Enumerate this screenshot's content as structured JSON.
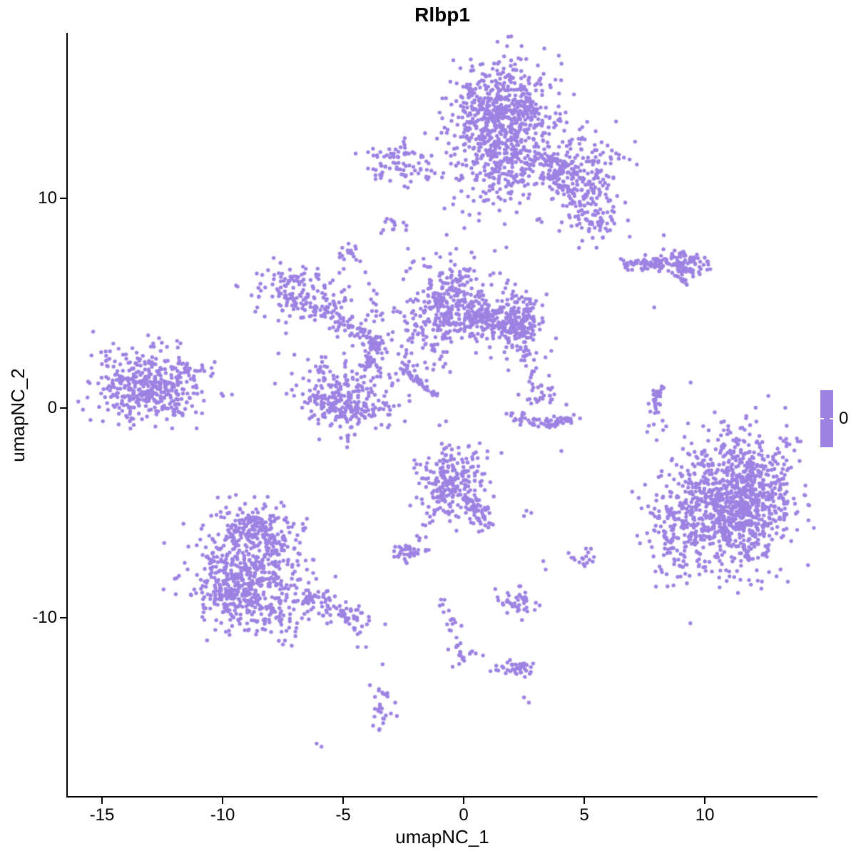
{
  "title": "Rlbp1",
  "legend": {
    "label": "0"
  },
  "colors": {
    "point": "#9D82E2",
    "legend_bar": "#9D82E2",
    "axis": "#000000",
    "background": "#FFFFFF"
  },
  "chart_data": {
    "type": "scatter",
    "title": "Rlbp1",
    "xlabel": "umapNC_1",
    "ylabel": "umapNC_2",
    "x_ticks": [
      -15,
      -10,
      -5,
      0,
      5,
      10
    ],
    "y_ticks": [
      -10,
      0,
      10
    ],
    "xlim": [
      -16.42,
      14.64
    ],
    "ylim": [
      -18.54,
      17.86
    ],
    "grid": false,
    "legend": {
      "values": [
        "0"
      ],
      "position": "right"
    },
    "point_color": "#9D82E2",
    "point_radius_px": 2.7,
    "clusters": [
      {
        "name": "top-main-core",
        "type": "blob",
        "cx": 1.6,
        "cy": 14.0,
        "sx": 1.05,
        "sy": 1.25,
        "n": 620
      },
      {
        "name": "top-main-skirt",
        "type": "blob",
        "cx": 1.5,
        "cy": 12.1,
        "sx": 0.95,
        "sy": 0.85,
        "n": 130
      },
      {
        "name": "top-main-bridge",
        "type": "blob",
        "cx": 1.2,
        "cy": 10.7,
        "sx": 0.5,
        "sy": 0.6,
        "n": 30
      },
      {
        "name": "top-right-arm",
        "type": "blob",
        "cx": 4.7,
        "cy": 11.3,
        "sx": 0.85,
        "sy": 1.0,
        "n": 210
      },
      {
        "name": "top-right-arm-end",
        "type": "blob",
        "cx": 5.5,
        "cy": 9.3,
        "sx": 0.55,
        "sy": 0.7,
        "n": 90
      },
      {
        "name": "top-arm-connector",
        "type": "line",
        "x1": 3.4,
        "y1": 12.2,
        "x2": 4.4,
        "y2": 10.4,
        "jitter": 0.3,
        "n": 60
      },
      {
        "name": "top-sparse-ring",
        "type": "blob",
        "cx": 1.8,
        "cy": 10.2,
        "sx": 1.3,
        "sy": 1.1,
        "n": 45
      },
      {
        "name": "upper-left-small",
        "type": "blob",
        "cx": -2.5,
        "cy": 11.6,
        "sx": 0.68,
        "sy": 0.55,
        "n": 85
      },
      {
        "name": "upper-left-outliers",
        "type": "points",
        "pts": [
          [
            -1.2,
            11.2
          ],
          [
            -0.9,
            11.0
          ],
          [
            -1.5,
            10.9
          ]
        ]
      },
      {
        "name": "tiny-blob-a",
        "type": "blob",
        "cx": -2.9,
        "cy": 8.7,
        "sx": 0.25,
        "sy": 0.24,
        "n": 14
      },
      {
        "name": "tiny-blob-b",
        "type": "blob",
        "cx": -4.7,
        "cy": 7.4,
        "sx": 0.3,
        "sy": 0.27,
        "n": 16
      },
      {
        "name": "strand-up",
        "type": "line",
        "x1": -3.9,
        "y1": 6.2,
        "x2": -3.5,
        "y2": 4.3,
        "jitter": 0.14,
        "n": 14
      },
      {
        "name": "left-mid-cluster",
        "type": "blob",
        "cx": -6.7,
        "cy": 5.5,
        "sx": 0.95,
        "sy": 0.7,
        "n": 150
      },
      {
        "name": "left-mid-arm",
        "type": "blob",
        "cx": -5.6,
        "cy": 4.6,
        "sx": 0.38,
        "sy": 0.35,
        "n": 35
      },
      {
        "name": "strand-diag",
        "type": "line",
        "x1": -5.4,
        "y1": 4.2,
        "x2": -3.4,
        "y2": 3.1,
        "jitter": 0.22,
        "n": 65
      },
      {
        "name": "mid-left-blob",
        "type": "blob",
        "cx": -5.0,
        "cy": 0.6,
        "sx": 1.05,
        "sy": 1.0,
        "n": 230
      },
      {
        "name": "mid-left-blob-dense",
        "type": "blob",
        "cx": -4.9,
        "cy": -0.1,
        "sx": 0.75,
        "sy": 0.5,
        "n": 90
      },
      {
        "name": "strand-b",
        "type": "line",
        "x1": -4.2,
        "y1": 1.6,
        "x2": -3.6,
        "y2": 3.3,
        "jitter": 0.16,
        "n": 40
      },
      {
        "name": "center-top-cluster",
        "type": "blob",
        "cx": -0.6,
        "cy": 5.0,
        "sx": 0.8,
        "sy": 1.15,
        "n": 270
      },
      {
        "name": "center-top-left-sparse",
        "type": "blob",
        "cx": -1.6,
        "cy": 4.3,
        "sx": 0.5,
        "sy": 0.7,
        "n": 45
      },
      {
        "name": "center-arm-band",
        "type": "line",
        "x1": 0.1,
        "y1": 4.35,
        "x2": 2.5,
        "y2": 4.0,
        "jitter": 0.42,
        "n": 210
      },
      {
        "name": "center-arm-end",
        "type": "blob",
        "cx": 2.3,
        "cy": 4.1,
        "sx": 0.6,
        "sy": 0.8,
        "n": 140
      },
      {
        "name": "thin-streak",
        "type": "line",
        "x1": -2.6,
        "y1": 1.9,
        "x2": -1.1,
        "y2": 0.55,
        "jitter": 0.06,
        "n": 40
      },
      {
        "name": "center-sparse",
        "type": "blob",
        "cx": -1.9,
        "cy": 2.6,
        "sx": 0.75,
        "sy": 0.7,
        "n": 40
      },
      {
        "name": "far-left-cluster",
        "type": "blob",
        "cx": -13.2,
        "cy": 1.1,
        "sx": 1.05,
        "sy": 0.85,
        "n": 330
      },
      {
        "name": "far-left-arm",
        "type": "line",
        "x1": -12.0,
        "y1": 1.9,
        "x2": -10.5,
        "y2": 1.8,
        "jitter": 0.2,
        "n": 28
      },
      {
        "name": "far-left-skirt",
        "type": "blob",
        "cx": -12.4,
        "cy": 0.4,
        "sx": 0.9,
        "sy": 0.6,
        "n": 70
      },
      {
        "name": "smile-arc",
        "type": "arc",
        "x1": 2.0,
        "y1": -0.3,
        "x2": 4.5,
        "y2": -0.45,
        "ox": 0,
        "oy": -0.75,
        "jitter": 0.14,
        "n": 60
      },
      {
        "name": "smile-top-blob",
        "type": "blob",
        "cx": 3.2,
        "cy": 0.8,
        "sx": 0.28,
        "sy": 0.3,
        "n": 18
      },
      {
        "name": "smile-scatter",
        "type": "blob",
        "cx": 3.1,
        "cy": 0.25,
        "sx": 0.8,
        "sy": 0.3,
        "n": 10
      },
      {
        "name": "smile-strand",
        "type": "line",
        "x1": 2.45,
        "y1": 3.2,
        "x2": 2.9,
        "y2": 0.9,
        "jitter": 0.18,
        "n": 16
      },
      {
        "name": "right-crescent",
        "type": "arc",
        "x1": 8.2,
        "y1": 1.1,
        "x2": 7.9,
        "y2": -0.3,
        "ox": -0.25,
        "oy": 0,
        "jitter": 0.1,
        "n": 32
      },
      {
        "name": "right-crescent-dots",
        "type": "blob",
        "cx": 8.0,
        "cy": -0.75,
        "sx": 0.25,
        "sy": 0.25,
        "n": 6
      },
      {
        "name": "right-band",
        "type": "line",
        "x1": 6.6,
        "y1": 6.8,
        "x2": 8.5,
        "y2": 6.9,
        "jitter": 0.16,
        "n": 65
      },
      {
        "name": "right-band-blob",
        "type": "blob",
        "cx": 9.1,
        "cy": 7.0,
        "sx": 0.45,
        "sy": 0.38,
        "n": 85
      },
      {
        "name": "right-band-mini",
        "type": "line",
        "x1": 8.7,
        "y1": 6.4,
        "x2": 9.2,
        "y2": 5.9,
        "jitter": 0.07,
        "n": 10
      },
      {
        "name": "right-band-single",
        "type": "points",
        "pts": [
          [
            7.9,
            4.8
          ]
        ]
      },
      {
        "name": "right-big-core",
        "type": "blob",
        "cx": 11.3,
        "cy": -4.4,
        "sx": 1.25,
        "sy": 1.6,
        "n": 980
      },
      {
        "name": "right-big-skirt",
        "type": "blob",
        "cx": 9.0,
        "cy": -5.5,
        "sx": 0.85,
        "sy": 1.35,
        "n": 180
      },
      {
        "name": "center-bottom-cluster",
        "type": "blob",
        "cx": -0.45,
        "cy": -3.5,
        "sx": 0.72,
        "sy": 0.9,
        "n": 240
      },
      {
        "name": "center-bottom-arm",
        "type": "line",
        "x1": 0.15,
        "y1": -4.35,
        "x2": 1.1,
        "y2": -5.65,
        "jitter": 0.2,
        "n": 55
      },
      {
        "name": "center-bottom-trail",
        "type": "line",
        "x1": -1.1,
        "y1": -4.8,
        "x2": -2.1,
        "y2": -6.5,
        "jitter": 0.12,
        "n": 12
      },
      {
        "name": "small-left-blob",
        "type": "blob",
        "cx": -2.4,
        "cy": -6.8,
        "sx": 0.38,
        "sy": 0.3,
        "n": 38
      },
      {
        "name": "pair-a",
        "type": "points",
        "pts": [
          [
            2.6,
            -4.9
          ],
          [
            2.8,
            -5.0
          ],
          [
            2.5,
            -5.15
          ]
        ]
      },
      {
        "name": "small-right-blob",
        "type": "blob",
        "cx": 4.9,
        "cy": -7.2,
        "sx": 0.3,
        "sy": 0.27,
        "n": 17
      },
      {
        "name": "pair-b",
        "type": "points",
        "pts": [
          [
            3.3,
            -7.3
          ],
          [
            3.4,
            -7.7
          ]
        ]
      },
      {
        "name": "small-bottom-blob",
        "type": "blob",
        "cx": 2.3,
        "cy": -9.3,
        "sx": 0.42,
        "sy": 0.3,
        "n": 38
      },
      {
        "name": "pair-c",
        "type": "points",
        "pts": [
          [
            2.3,
            -8.5
          ],
          [
            2.55,
            -8.8
          ]
        ]
      },
      {
        "name": "trail-a",
        "type": "line",
        "x1": -0.95,
        "y1": -9.2,
        "x2": -0.3,
        "y2": -10.4,
        "jitter": 0.1,
        "n": 8
      },
      {
        "name": "trail-b",
        "type": "line",
        "x1": -0.6,
        "y1": -10.0,
        "x2": -0.1,
        "y2": -11.8,
        "jitter": 0.13,
        "n": 15
      },
      {
        "name": "trail-b-blob",
        "type": "blob",
        "cx": -0.1,
        "cy": -11.8,
        "sx": 0.23,
        "sy": 0.25,
        "n": 10
      },
      {
        "name": "trail-b-dots",
        "type": "points",
        "pts": [
          [
            0.5,
            -11.7
          ],
          [
            0.8,
            -11.8
          ],
          [
            0.35,
            -11.6
          ]
        ]
      },
      {
        "name": "bottom-h-blob",
        "type": "blob",
        "cx": 2.1,
        "cy": -12.45,
        "sx": 0.42,
        "sy": 0.2,
        "n": 26
      },
      {
        "name": "bottom-h-blob-dense",
        "type": "blob",
        "cx": 2.5,
        "cy": -12.5,
        "sx": 0.2,
        "sy": 0.16,
        "n": 14
      },
      {
        "name": "bottom-v-blob",
        "type": "blob",
        "cx": -3.4,
        "cy": -14.4,
        "sx": 0.2,
        "sy": 0.72,
        "n": 30
      },
      {
        "name": "pair-d",
        "type": "points",
        "pts": [
          [
            2.5,
            -13.8
          ],
          [
            2.7,
            -14.05
          ]
        ]
      },
      {
        "name": "pair-e",
        "type": "points",
        "pts": [
          [
            -6.1,
            -16.0
          ],
          [
            -5.9,
            -16.15
          ]
        ]
      },
      {
        "name": "stragglers",
        "type": "points",
        "pts": [
          [
            -4.4,
            -11.4
          ],
          [
            -4.05,
            -11.4
          ],
          [
            4.05,
            -2.05
          ],
          [
            2.85,
            1.75
          ],
          [
            1.85,
            1.8
          ]
        ]
      },
      {
        "name": "bottom-left-core",
        "type": "blob",
        "cx": -8.8,
        "cy": -7.8,
        "sx": 1.15,
        "sy": 1.3,
        "n": 470
      },
      {
        "name": "bottom-left-top",
        "type": "blob",
        "cx": -8.6,
        "cy": -5.7,
        "sx": 0.8,
        "sy": 0.6,
        "n": 160
      },
      {
        "name": "bottom-left-bulge",
        "type": "blob",
        "cx": -9.8,
        "cy": -8.8,
        "sx": 0.6,
        "sy": 0.75,
        "n": 130
      },
      {
        "name": "bottom-left-tail",
        "type": "line",
        "x1": -6.6,
        "y1": -8.9,
        "x2": -4.15,
        "y2": -10.3,
        "jitter": 0.32,
        "n": 95
      },
      {
        "name": "bottom-left-sparse",
        "type": "blob",
        "cx": -8.0,
        "cy": -10.1,
        "sx": 0.9,
        "sy": 0.42,
        "n": 55
      }
    ]
  }
}
